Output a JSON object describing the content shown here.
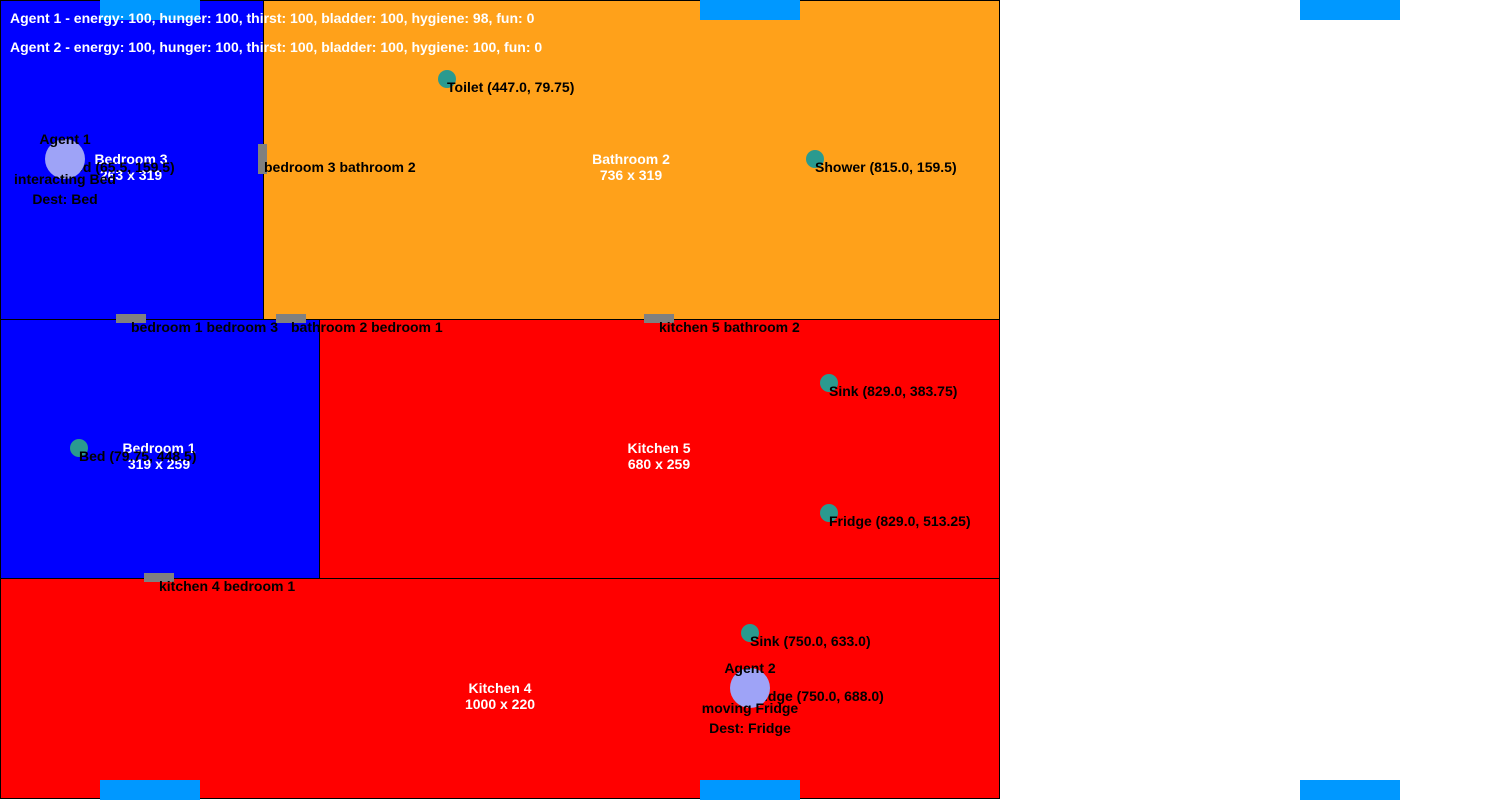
{
  "colors": {
    "bedroom": "#0000ff",
    "bathroom": "#ffa11a",
    "kitchen": "#ff0000",
    "door": "#808080",
    "object": "#2a9a8f",
    "agent": "#9ea3f7",
    "marker": "#0098ff"
  },
  "status": {
    "agent1": "Agent 1 - energy: 100, hunger: 100, thirst: 100, bladder: 100, hygiene: 98, fun: 0",
    "agent2": "Agent 2 - energy: 100, hunger: 100, thirst: 100, bladder: 100, hygiene: 100, fun: 0"
  },
  "rooms": {
    "bedroom3": {
      "name": "Bedroom 3",
      "size": "263 x 319"
    },
    "bathroom2": {
      "name": "Bathroom 2",
      "size": "736 x 319"
    },
    "bedroom1": {
      "name": "Bedroom 1",
      "size": "319 x 259"
    },
    "kitchen5": {
      "name": "Kitchen 5",
      "size": "680 x 259"
    },
    "kitchen4": {
      "name": "Kitchen 4",
      "size": "1000 x 220"
    }
  },
  "doors": {
    "bedroom3_bathroom2": "bedroom 3 bathroom 2",
    "bedroom1_bedroom3": "bedroom 1 bedroom 3",
    "bathroom2_bedroom1": "bathroom 2 bedroom 1",
    "kitchen5_bathroom2": "kitchen 5 bathroom 2",
    "kitchen4_bedroom1": "kitchen 4 bedroom 1"
  },
  "objects": {
    "toilet": "Toilet (447.0, 79.75)",
    "shower": "Shower (815.0, 159.5)",
    "bed3": "Bed (65.5, 159.5)",
    "sink5": "Sink (829.0, 383.75)",
    "fridge5": "Fridge (829.0, 513.25)",
    "bed1": "Bed (79.75, 448.5)",
    "sink4": "Sink (750.0, 633.0)",
    "fridge4": "Fridge (750.0, 688.0)"
  },
  "agents": {
    "agent1": {
      "name": "Agent 1",
      "state": "interacting Bed",
      "dest": "Dest: Bed"
    },
    "agent2": {
      "name": "Agent 2",
      "state": "moving Fridge",
      "dest": "Dest: Fridge"
    }
  }
}
